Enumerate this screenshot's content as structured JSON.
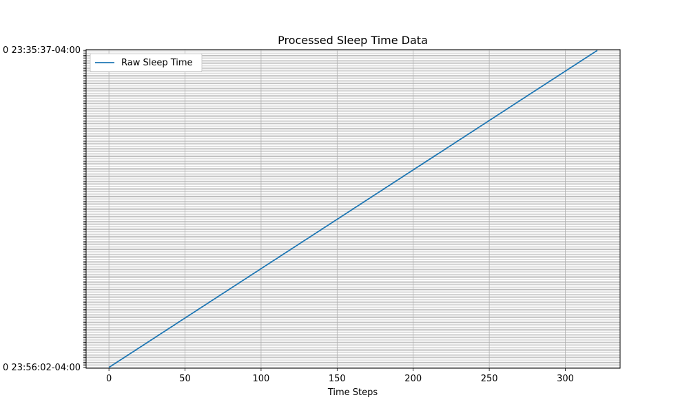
{
  "chart_data": {
    "type": "line",
    "title": "Processed Sleep Time Data",
    "xlabel": "Time Steps",
    "ylabel": "",
    "xlim": [
      -15,
      336
    ],
    "xticks": [
      0,
      50,
      100,
      150,
      200,
      250,
      300
    ],
    "xtick_labels": [
      "0",
      "50",
      "100",
      "150",
      "200",
      "250",
      "300"
    ],
    "ylim": [
      -0.5,
      191.5
    ],
    "y_category_count": 192,
    "ytick_labels_visible_fragments": {
      "bottom": "0 23:56:02-04:00",
      "top": "0 23:35:37-04:00"
    },
    "grid": true,
    "legend_position": "upper-left",
    "series": [
      {
        "name": "Raw Sleep Time",
        "color": "#1f77b4",
        "x": [
          0,
          321
        ],
        "y": [
          0,
          191
        ]
      }
    ]
  }
}
